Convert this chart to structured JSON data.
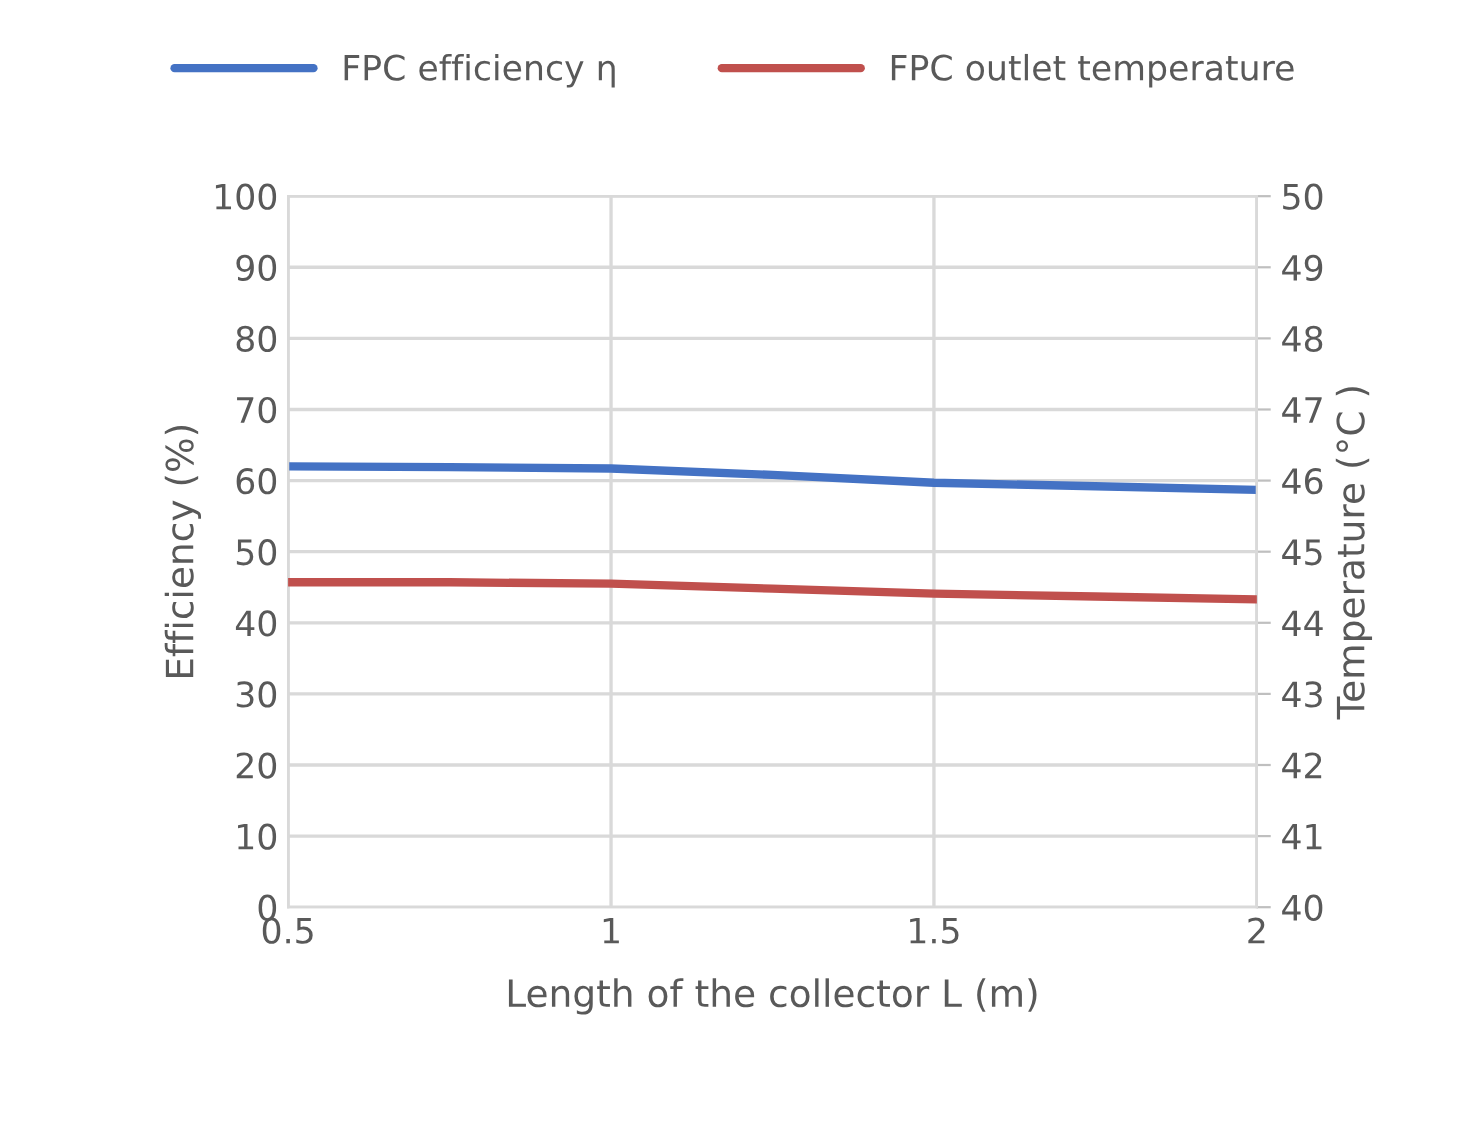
{
  "chart_data": {
    "type": "line",
    "xlabel": "Length of the collector L (m)",
    "ylabel": "Efficiency (%)",
    "y2label": "Temperature (°C )",
    "x": [
      0.5,
      0.75,
      1,
      1.25,
      1.5,
      1.75,
      2
    ],
    "series": [
      {
        "name": "FPC efficiency η",
        "color": "#4472c4",
        "values": [
          62.0,
          61.9,
          61.7,
          60.8,
          59.7,
          59.2,
          58.7
        ]
      },
      {
        "name": "FPC outlet temperature",
        "color": "#c0504d",
        "axis": "y2",
        "values": [
          44.57,
          44.57,
          44.55,
          44.48,
          44.41,
          44.37,
          44.33
        ]
      }
    ],
    "xlim": [
      0.5,
      2
    ],
    "xticks": [
      0.5,
      1,
      1.5,
      2
    ],
    "ylim": [
      0,
      100
    ],
    "yticks": [
      0,
      10,
      20,
      30,
      40,
      50,
      60,
      70,
      80,
      90,
      100
    ],
    "y2lim": [
      40,
      50
    ],
    "y2ticks": [
      40,
      41,
      42,
      43,
      44,
      45,
      46,
      47,
      48,
      49,
      50
    ],
    "grid": true,
    "legend": "top",
    "marker": "none",
    "line_style": "solid"
  }
}
